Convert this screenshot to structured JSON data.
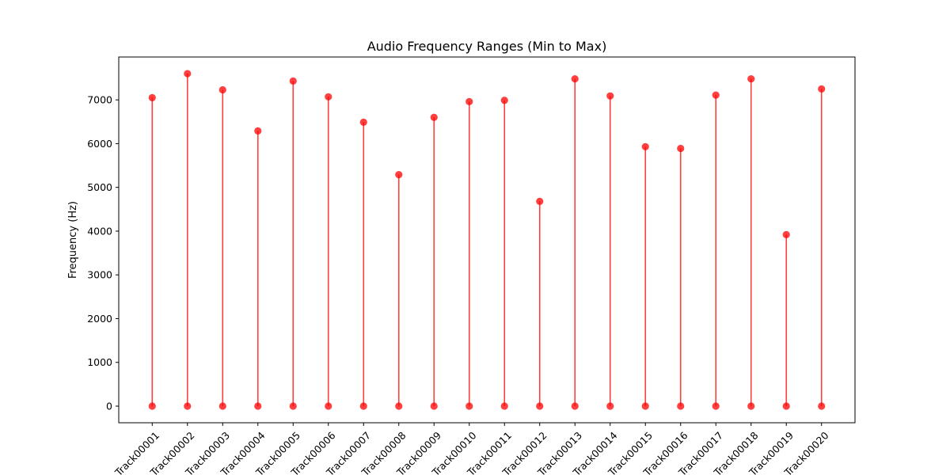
{
  "chart_data": {
    "type": "dumbbell",
    "title": "Audio Frequency Ranges (Min to Max)",
    "xlabel": "",
    "ylabel": "Frequency (Hz)",
    "categories": [
      "Track00001",
      "Track00002",
      "Track00003",
      "Track00004",
      "Track00005",
      "Track00006",
      "Track00007",
      "Track00008",
      "Track00009",
      "Track00010",
      "Track00011",
      "Track00012",
      "Track00013",
      "Track00014",
      "Track00015",
      "Track00016",
      "Track00017",
      "Track00018",
      "Track00019",
      "Track00020"
    ],
    "series": [
      {
        "values": [
          0,
          0,
          0,
          0,
          0,
          0,
          0,
          0,
          0,
          0,
          0,
          0,
          0,
          0,
          0,
          0,
          0,
          0,
          0,
          0
        ]
      },
      {
        "values": [
          7050,
          7600,
          7230,
          6290,
          7430,
          7070,
          6490,
          5290,
          6600,
          6960,
          6990,
          4680,
          7480,
          7090,
          5930,
          5890,
          7110,
          7480,
          3920,
          7250
        ]
      }
    ],
    "yticks": [
      0,
      1000,
      2000,
      3000,
      4000,
      5000,
      6000,
      7000
    ],
    "ylim": [
      -380,
      7980
    ],
    "grid": false,
    "color": "#ff0000"
  }
}
